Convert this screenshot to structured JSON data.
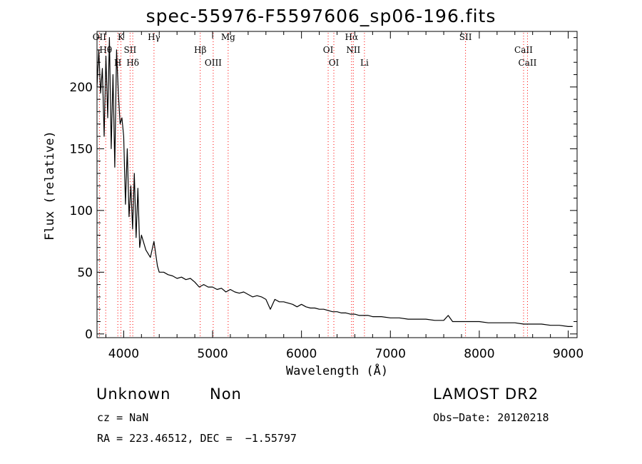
{
  "title": "spec-55976-F5597606_sp06-196.fits",
  "xlabel": "Wavelength (Å)",
  "ylabel": "Flux (relative)",
  "info": {
    "class_label": "Unknown",
    "subclass_label": "Non",
    "cz_label": "cz = NaN",
    "radec_label": "RA = 223.46512, DEC =  −1.55797",
    "survey_label": "LAMOST DR2",
    "obs_date_label": "Obs−Date: 20120218"
  },
  "chart_data": {
    "type": "line",
    "title": "spec-55976-F5597606_sp06-196.fits",
    "xlabel": "Wavelength (Å)",
    "ylabel": "Flux (relative)",
    "xlim": [
      3700,
      9100
    ],
    "ylim": [
      -3,
      245
    ],
    "xticks": [
      4000,
      5000,
      6000,
      7000,
      8000,
      9000
    ],
    "yticks": [
      0,
      50,
      100,
      150,
      200
    ],
    "grid": false,
    "line_color": "#000000",
    "marker_color": "#ff0000",
    "series": [
      {
        "x": [
          3700,
          3720,
          3740,
          3760,
          3780,
          3800,
          3820,
          3840,
          3860,
          3880,
          3900,
          3920,
          3940,
          3960,
          3980,
          4000,
          4020,
          4040,
          4060,
          4080,
          4100,
          4120,
          4140,
          4160,
          4180,
          4200,
          4250,
          4300,
          4340,
          4380,
          4400,
          4450,
          4500,
          4550,
          4600,
          4650,
          4700,
          4750,
          4800,
          4850,
          4900,
          4950,
          5000,
          5050,
          5100,
          5150,
          5200,
          5250,
          5300,
          5350,
          5400,
          5450,
          5500,
          5550,
          5600,
          5650,
          5700,
          5750,
          5800,
          5850,
          5900,
          5950,
          6000,
          6050,
          6100,
          6150,
          6200,
          6250,
          6300,
          6350,
          6400,
          6450,
          6500,
          6550,
          6600,
          6650,
          6700,
          6750,
          6800,
          6900,
          7000,
          7100,
          7200,
          7300,
          7400,
          7500,
          7600,
          7650,
          7700,
          7800,
          7900,
          8000,
          8100,
          8200,
          8300,
          8400,
          8500,
          8600,
          8700,
          8800,
          8900,
          9000,
          9050
        ],
        "y": [
          200,
          230,
          195,
          215,
          160,
          225,
          175,
          240,
          150,
          210,
          135,
          230,
          195,
          170,
          175,
          160,
          105,
          150,
          95,
          120,
          85,
          130,
          78,
          118,
          70,
          80,
          68,
          62,
          75,
          55,
          50,
          50,
          48,
          47,
          45,
          46,
          44,
          45,
          42,
          38,
          40,
          38,
          38,
          36,
          37,
          34,
          36,
          34,
          33,
          34,
          32,
          30,
          31,
          30,
          28,
          20,
          28,
          26,
          26,
          25,
          24,
          22,
          24,
          22,
          21,
          21,
          20,
          20,
          19,
          18,
          18,
          17,
          17,
          16,
          16,
          15,
          15,
          15,
          14,
          14,
          13,
          13,
          12,
          12,
          12,
          11,
          11,
          15,
          10,
          10,
          10,
          10,
          9,
          9,
          9,
          9,
          8,
          8,
          8,
          7,
          7,
          6,
          6
        ]
      }
    ],
    "lines": [
      {
        "label": "OII",
        "wavelength": 3727
      },
      {
        "label": "Hθ",
        "wavelength": 3798
      },
      {
        "label": "H",
        "wavelength": 3934
      },
      {
        "label": "K",
        "wavelength": 3969
      },
      {
        "label": "SII",
        "wavelength": 4072
      },
      {
        "label": "Hδ",
        "wavelength": 4102
      },
      {
        "label": "Hγ",
        "wavelength": 4341
      },
      {
        "label": "Hβ",
        "wavelength": 4861
      },
      {
        "label": "OIII",
        "wavelength": 5007
      },
      {
        "label": "Mg",
        "wavelength": 5175
      },
      {
        "label": "OI",
        "wavelength": 6300
      },
      {
        "label": "OI",
        "wavelength": 6364
      },
      {
        "label": "Hα",
        "wavelength": 6563
      },
      {
        "label": "NII",
        "wavelength": 6583
      },
      {
        "label": "Li",
        "wavelength": 6708
      },
      {
        "label": "SII",
        "wavelength": 7845
      },
      {
        "label": "CaII",
        "wavelength": 8498
      },
      {
        "label": "CaII",
        "wavelength": 8542
      }
    ]
  }
}
